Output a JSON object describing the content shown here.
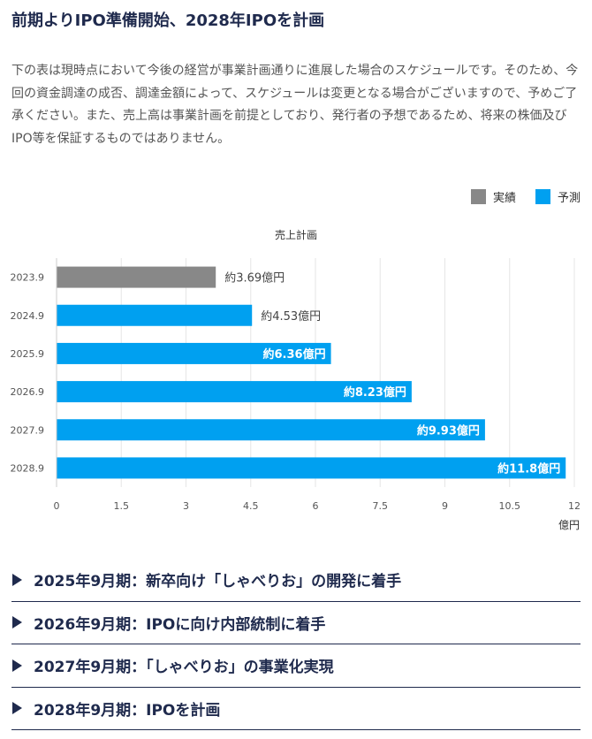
{
  "header": {
    "title": "前期よりIPO準備開始、2028年IPOを計画"
  },
  "intro": {
    "text": "下の表は現時点において今後の経営が事業計画通りに進展した場合のスケジュールです。そのため、今回の資金調達の成否、調達金額によって、スケジュールは変更となる場合がございますので、予めご了承ください。また、売上高は事業計画を前提としており、発行者の予想であるため、将来の株価及びIPO等を保証するものではありません。"
  },
  "legend": {
    "items": [
      {
        "label": "実績",
        "color": "#888888"
      },
      {
        "label": "予測",
        "color": "#00a0f0"
      }
    ]
  },
  "chart_data": {
    "type": "bar",
    "orientation": "horizontal",
    "title": "売上計画",
    "xlabel": "億円",
    "categories": [
      "2023.9",
      "2024.9",
      "2025.9",
      "2026.9",
      "2027.9",
      "2028.9"
    ],
    "values": [
      3.69,
      4.53,
      6.36,
      8.23,
      9.93,
      11.8
    ],
    "value_labels": [
      "約3.69億円",
      "約4.53億円",
      "約6.36億円",
      "約8.23億円",
      "約9.93億円",
      "約11.8億円"
    ],
    "bar_kind": [
      "実績",
      "予測",
      "予測",
      "予測",
      "予測",
      "予測"
    ],
    "xlim": [
      0,
      12
    ],
    "xticks": [
      "0",
      "1.5",
      "3",
      "4.5",
      "6",
      "7.5",
      "9",
      "10.5",
      "12"
    ],
    "grid": true,
    "legend_position": "top-right"
  },
  "milestones": [
    {
      "label": "2025年9月期：新卒向け「しゃべりお」の開発に着手"
    },
    {
      "label": "2026年9月期：IPOに向け内部統制に着手"
    },
    {
      "label": "2027年9月期：「しゃべりお」の事業化実現"
    },
    {
      "label": "2028年9月期：IPOを計画"
    }
  ]
}
